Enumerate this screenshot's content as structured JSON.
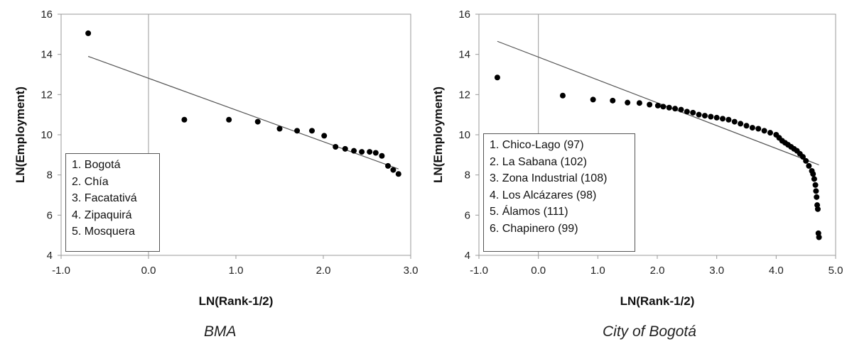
{
  "chart_data": [
    {
      "type": "scatter",
      "caption": "BMA",
      "xlabel": "LN(Rank-1/2)",
      "ylabel": "LN(Employment)",
      "xlim": [
        -1.0,
        3.0
      ],
      "ylim": [
        4,
        16
      ],
      "xticks": [
        "-1.0",
        "0.0",
        "1.0",
        "2.0",
        "3.0"
      ],
      "xtick_values": [
        -1,
        0,
        1,
        2,
        3
      ],
      "yticks": [
        "4",
        "6",
        "8",
        "10",
        "12",
        "14",
        "16"
      ],
      "ytick_values": [
        4,
        6,
        8,
        10,
        12,
        14,
        16
      ],
      "points": [
        [
          -0.69,
          15.05
        ],
        [
          0.41,
          10.75
        ],
        [
          0.92,
          10.75
        ],
        [
          1.25,
          10.65
        ],
        [
          1.5,
          10.3
        ],
        [
          1.7,
          10.2
        ],
        [
          1.87,
          10.2
        ],
        [
          2.01,
          9.95
        ],
        [
          2.14,
          9.4
        ],
        [
          2.25,
          9.3
        ],
        [
          2.35,
          9.2
        ],
        [
          2.44,
          9.15
        ],
        [
          2.53,
          9.15
        ],
        [
          2.6,
          9.1
        ],
        [
          2.67,
          8.95
        ],
        [
          2.74,
          8.45
        ],
        [
          2.8,
          8.25
        ],
        [
          2.86,
          8.05
        ]
      ],
      "trendline": [
        [
          -0.69,
          13.9
        ],
        [
          2.86,
          8.3
        ]
      ],
      "legend": [
        "1. Bogotá",
        "2. Chía",
        "3. Facatativá",
        "4. Zipaquirá",
        "5. Mosquera"
      ],
      "legend_placement": "bottom-left"
    },
    {
      "type": "scatter",
      "caption": "City of Bogotá",
      "xlabel": "LN(Rank-1/2)",
      "ylabel": "LN(Employment)",
      "xlim": [
        -1.0,
        5.0
      ],
      "ylim": [
        4,
        16
      ],
      "xticks": [
        "-1.0",
        "0.0",
        "1.0",
        "2.0",
        "3.0",
        "4.0",
        "5.0"
      ],
      "xtick_values": [
        -1,
        0,
        1,
        2,
        3,
        4,
        5
      ],
      "yticks": [
        "4",
        "6",
        "8",
        "10",
        "12",
        "14",
        "16"
      ],
      "ytick_values": [
        4,
        6,
        8,
        10,
        12,
        14,
        16
      ],
      "points": [
        [
          -0.69,
          12.85
        ],
        [
          0.41,
          11.95
        ],
        [
          0.92,
          11.75
        ],
        [
          1.25,
          11.7
        ],
        [
          1.5,
          11.6
        ],
        [
          1.7,
          11.58
        ],
        [
          1.87,
          11.5
        ],
        [
          2.01,
          11.45
        ],
        [
          2.1,
          11.4
        ],
        [
          2.2,
          11.35
        ],
        [
          2.3,
          11.3
        ],
        [
          2.4,
          11.25
        ],
        [
          2.5,
          11.15
        ],
        [
          2.6,
          11.1
        ],
        [
          2.7,
          11.0
        ],
        [
          2.8,
          10.95
        ],
        [
          2.9,
          10.9
        ],
        [
          3.0,
          10.85
        ],
        [
          3.1,
          10.8
        ],
        [
          3.2,
          10.75
        ],
        [
          3.3,
          10.65
        ],
        [
          3.4,
          10.55
        ],
        [
          3.5,
          10.45
        ],
        [
          3.6,
          10.35
        ],
        [
          3.7,
          10.3
        ],
        [
          3.8,
          10.2
        ],
        [
          3.9,
          10.1
        ],
        [
          4.0,
          10.0
        ],
        [
          4.05,
          9.85
        ],
        [
          4.1,
          9.7
        ],
        [
          4.15,
          9.6
        ],
        [
          4.2,
          9.5
        ],
        [
          4.25,
          9.4
        ],
        [
          4.3,
          9.3
        ],
        [
          4.35,
          9.2
        ],
        [
          4.4,
          9.05
        ],
        [
          4.45,
          8.9
        ],
        [
          4.5,
          8.7
        ],
        [
          4.55,
          8.45
        ],
        [
          4.6,
          8.2
        ],
        [
          4.62,
          8.05
        ],
        [
          4.64,
          7.8
        ],
        [
          4.66,
          7.5
        ],
        [
          4.67,
          7.2
        ],
        [
          4.68,
          6.9
        ],
        [
          4.69,
          6.5
        ],
        [
          4.7,
          6.3
        ],
        [
          4.71,
          5.1
        ],
        [
          4.72,
          4.9
        ]
      ],
      "trendline": [
        [
          -0.69,
          14.65
        ],
        [
          4.72,
          8.5
        ]
      ],
      "legend": [
        "1. Chico-Lago (97)",
        "2. La Sabana (102)",
        "3. Zona Industrial (108)",
        "4. Los Alcázares (98)",
        "5. Álamos (111)",
        "6. Chapinero (99)"
      ],
      "legend_placement": "bottom-left"
    }
  ]
}
